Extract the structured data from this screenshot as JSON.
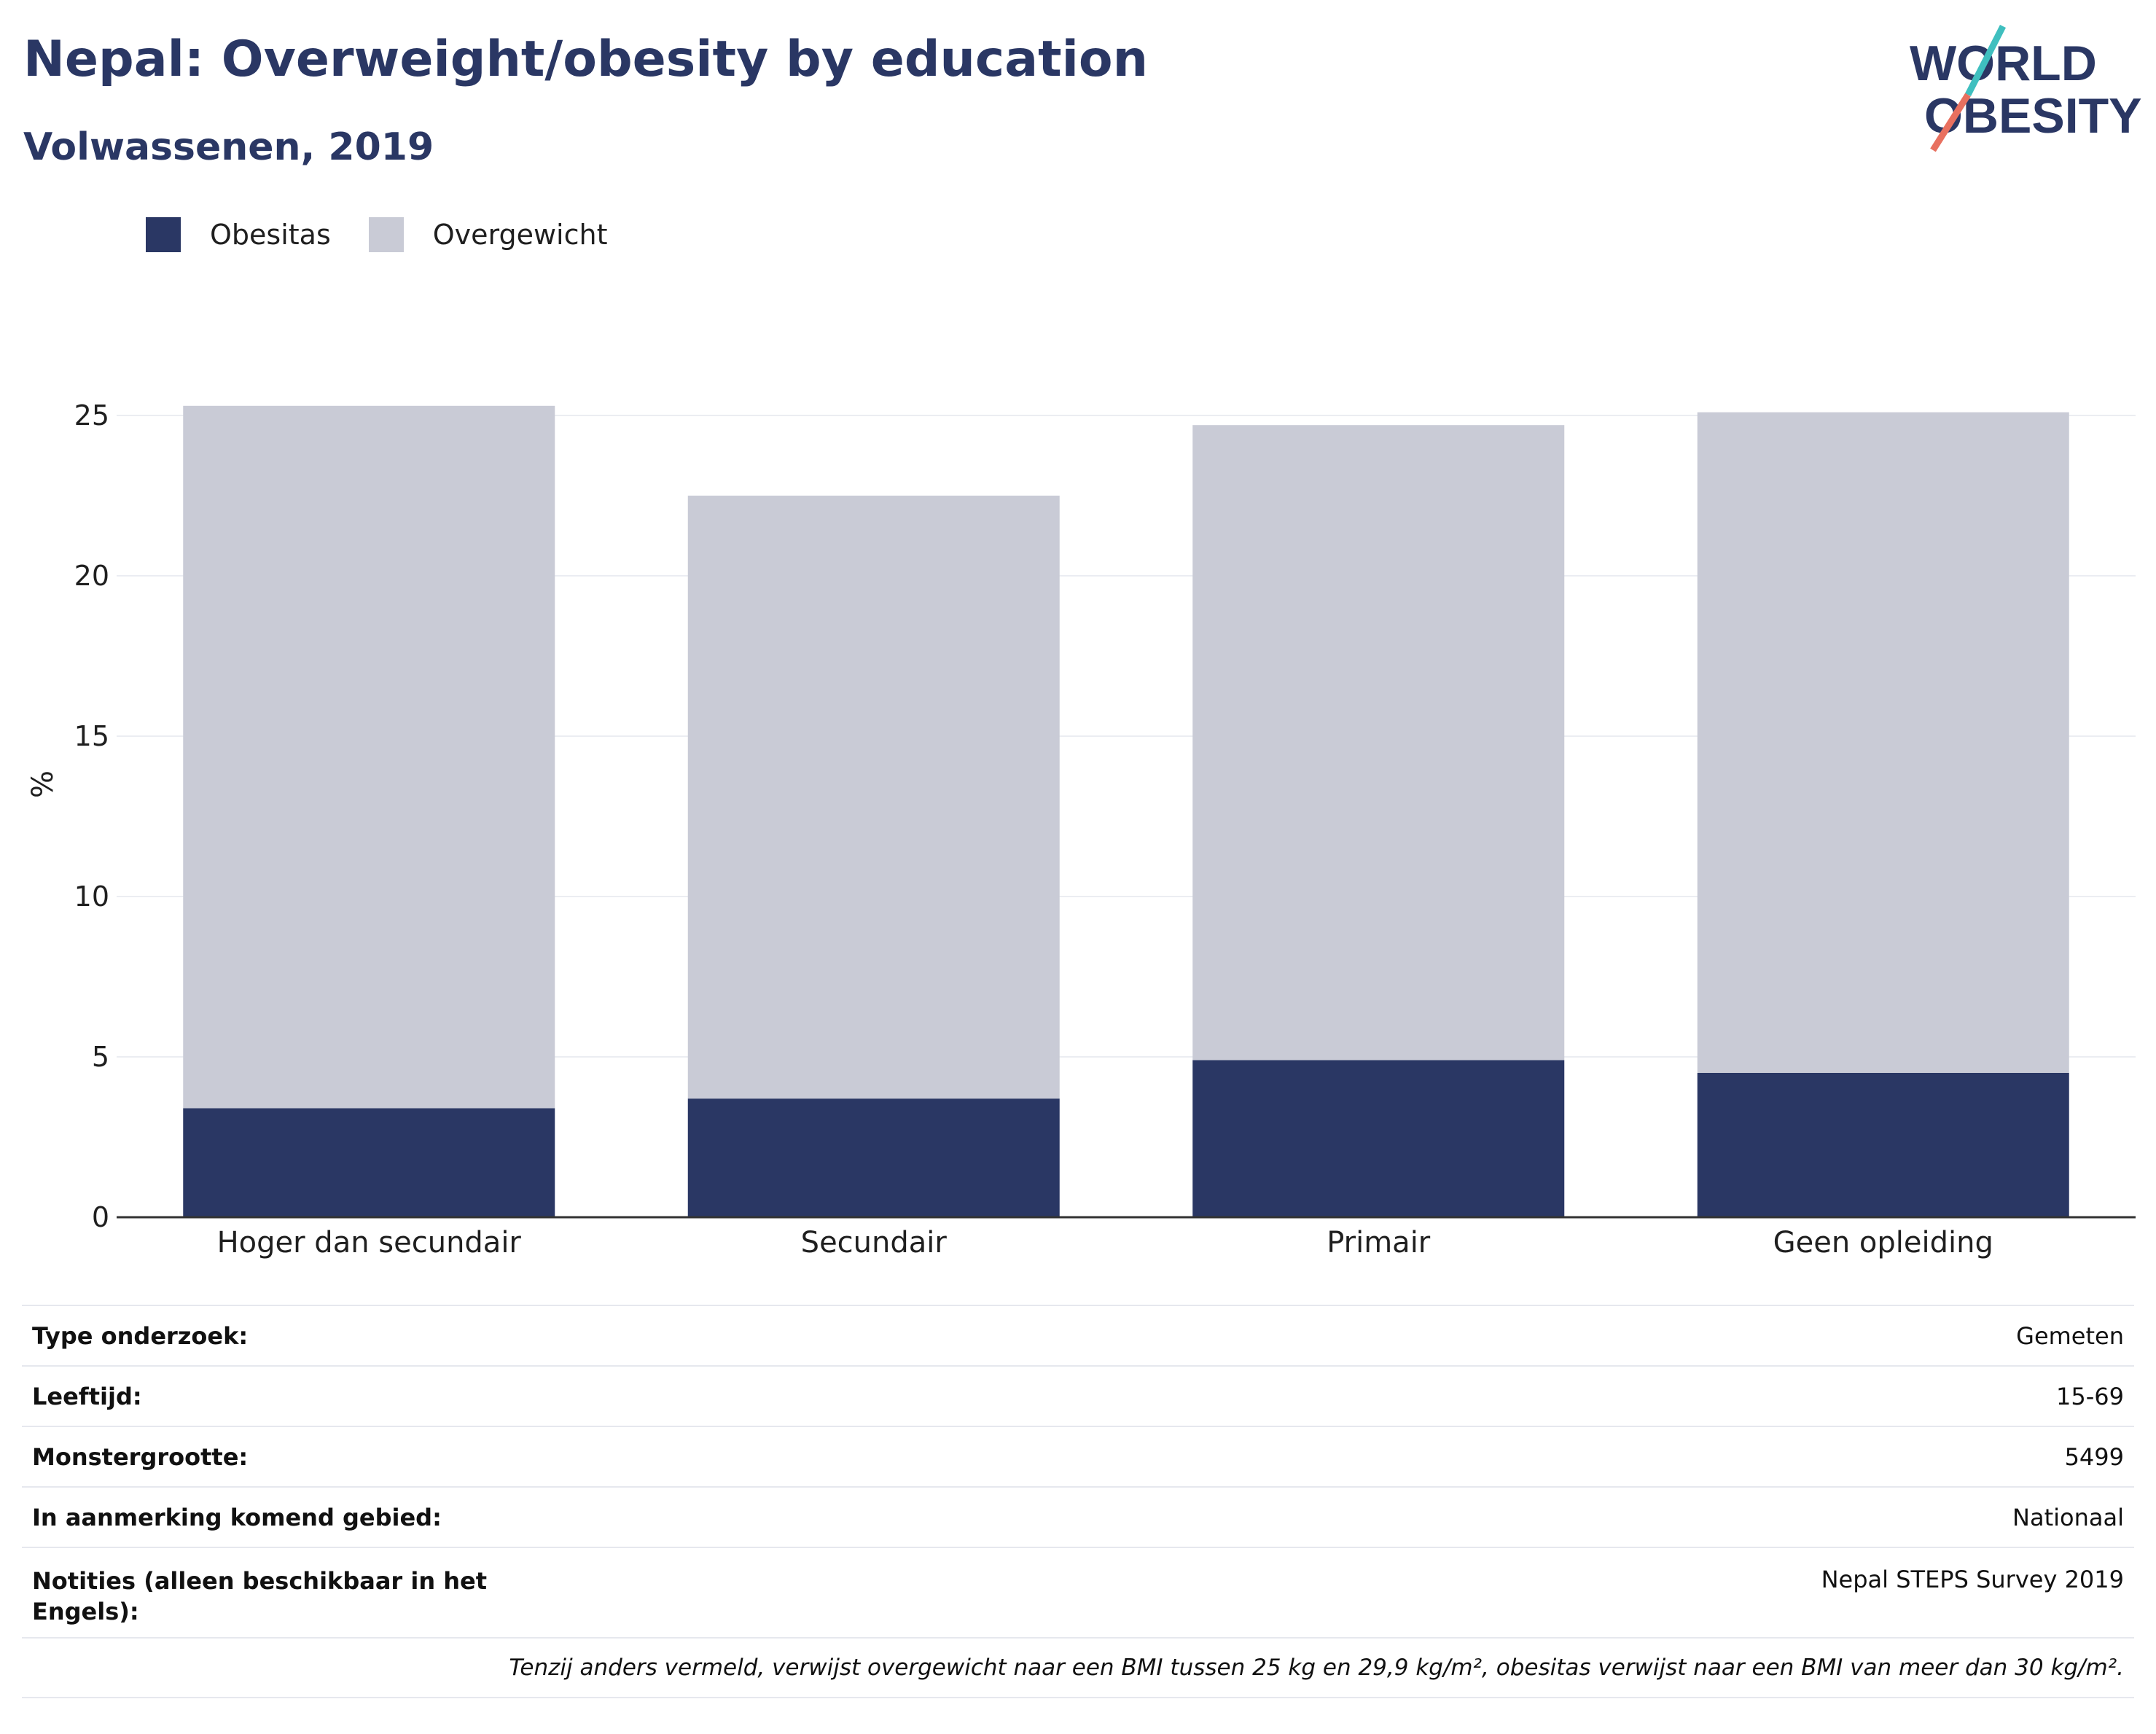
{
  "title": "Nepal: Overweight/obesity by education",
  "subtitle": "Volwassenen, 2019",
  "logo": {
    "line1": "WORLD",
    "line2": "OBESITY"
  },
  "legend": {
    "obesity_label": "Obesitas",
    "overweight_label": "Overgewicht"
  },
  "colors": {
    "obesity": "#2a3764",
    "overweight": "#c9cbd6",
    "logo_teal": "#3fbfbf",
    "logo_coral": "#e8705f"
  },
  "chart_data": {
    "type": "bar",
    "stacked": true,
    "ylabel": "%",
    "xlabel": "",
    "ylim": [
      0,
      27
    ],
    "yticks": [
      0,
      5,
      10,
      15,
      20,
      25
    ],
    "categories": [
      "Hoger dan secundair",
      "Secundair",
      "Primair",
      "Geen opleiding"
    ],
    "series": [
      {
        "name": "Obesitas",
        "values": [
          3.4,
          3.7,
          4.9,
          4.5
        ]
      },
      {
        "name": "Overgewicht",
        "values": [
          21.9,
          18.8,
          19.8,
          20.6
        ]
      }
    ],
    "grid": true,
    "legend_position": "top-left"
  },
  "info": {
    "rows": [
      {
        "label": "Type onderzoek:",
        "value": "Gemeten"
      },
      {
        "label": "Leeftijd:",
        "value": "15-69"
      },
      {
        "label": "Monstergrootte:",
        "value": "5499"
      },
      {
        "label": "In aanmerking komend gebied:",
        "value": "Nationaal"
      },
      {
        "label": "Notities (alleen beschikbaar in het Engels):",
        "value": "Nepal STEPS Survey 2019"
      }
    ],
    "footnote": "Tenzij anders vermeld, verwijst overgewicht naar een BMI tussen 25 kg en 29,9 kg/m², obesitas verwijst naar een BMI van meer dan 30 kg/m²."
  }
}
